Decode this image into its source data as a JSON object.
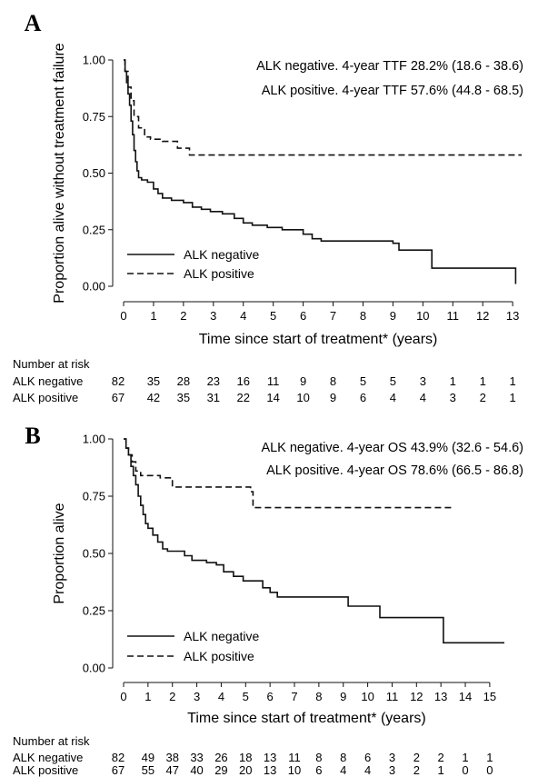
{
  "chart_data": [
    {
      "panel_letter": "A",
      "type": "line",
      "subtype": "kaplan-meier",
      "ylabel": "Proportion alive without treatment failure",
      "xlabel": "Time since start of treatment* (years)",
      "xlim": [
        0,
        13.3
      ],
      "ylim": [
        0,
        1
      ],
      "xticks": [
        "0",
        "1",
        "2",
        "3",
        "4",
        "5",
        "6",
        "7",
        "8",
        "9",
        "10",
        "11",
        "12",
        "13"
      ],
      "yticks": [
        "0.00",
        "0.25",
        "0.50",
        "0.75",
        "1.00"
      ],
      "annotations": [
        "ALK negative. 4-year TTF 28.2% (18.6 - 38.6)",
        "ALK positive. 4-year TTF 57.6% (44.8 - 68.5)"
      ],
      "legend": {
        "position": "bottom-left",
        "entries": [
          "ALK negative",
          "ALK positive"
        ]
      },
      "series": [
        {
          "name": "ALK negative",
          "style": "solid",
          "points": [
            [
              0,
              1.0
            ],
            [
              0.05,
              0.95
            ],
            [
              0.1,
              0.9
            ],
            [
              0.15,
              0.85
            ],
            [
              0.2,
              0.8
            ],
            [
              0.25,
              0.73
            ],
            [
              0.3,
              0.67
            ],
            [
              0.35,
              0.6
            ],
            [
              0.4,
              0.55
            ],
            [
              0.45,
              0.51
            ],
            [
              0.5,
              0.48
            ],
            [
              0.6,
              0.47
            ],
            [
              0.8,
              0.46
            ],
            [
              1.0,
              0.43
            ],
            [
              1.15,
              0.41
            ],
            [
              1.3,
              0.39
            ],
            [
              1.6,
              0.38
            ],
            [
              2.0,
              0.37
            ],
            [
              2.3,
              0.35
            ],
            [
              2.6,
              0.34
            ],
            [
              2.9,
              0.33
            ],
            [
              3.3,
              0.32
            ],
            [
              3.7,
              0.3
            ],
            [
              4.0,
              0.28
            ],
            [
              4.3,
              0.27
            ],
            [
              4.8,
              0.26
            ],
            [
              5.3,
              0.25
            ],
            [
              6.0,
              0.23
            ],
            [
              6.3,
              0.21
            ],
            [
              6.6,
              0.2
            ],
            [
              9.0,
              0.19
            ],
            [
              9.2,
              0.16
            ],
            [
              10.2,
              0.16
            ],
            [
              10.3,
              0.08
            ],
            [
              13.1,
              0.08
            ],
            [
              13.1,
              0.01
            ]
          ]
        },
        {
          "name": "ALK positive",
          "style": "dashed",
          "points": [
            [
              0,
              1.0
            ],
            [
              0.05,
              0.95
            ],
            [
              0.15,
              0.88
            ],
            [
              0.25,
              0.82
            ],
            [
              0.35,
              0.75
            ],
            [
              0.5,
              0.7
            ],
            [
              0.7,
              0.66
            ],
            [
              0.9,
              0.65
            ],
            [
              1.3,
              0.64
            ],
            [
              1.8,
              0.61
            ],
            [
              2.2,
              0.58
            ],
            [
              13.3,
              0.58
            ]
          ]
        }
      ],
      "risk_table": {
        "header": "Number at risk",
        "times": [
          0,
          1,
          2,
          3,
          4,
          5,
          6,
          7,
          8,
          9,
          10,
          11,
          12,
          13
        ],
        "rows": [
          {
            "label": "ALK negative",
            "values": [
              "82",
              "35",
              "28",
              "23",
              "16",
              "11",
              "9",
              "8",
              "5",
              "5",
              "3",
              "1",
              "1",
              "1"
            ]
          },
          {
            "label": "ALK positive",
            "values": [
              "67",
              "42",
              "35",
              "31",
              "22",
              "14",
              "10",
              "9",
              "6",
              "4",
              "4",
              "3",
              "2",
              "1"
            ]
          }
        ]
      }
    },
    {
      "panel_letter": "B",
      "type": "line",
      "subtype": "kaplan-meier",
      "ylabel": "Proportion alive",
      "xlabel": "Time since start of treatment* (years)",
      "xlim": [
        0,
        15.6
      ],
      "ylim": [
        0,
        1
      ],
      "xticks": [
        "0",
        "1",
        "2",
        "3",
        "4",
        "5",
        "6",
        "7",
        "8",
        "9",
        "10",
        "11",
        "12",
        "13",
        "14",
        "15"
      ],
      "yticks": [
        "0.00",
        "0.25",
        "0.50",
        "0.75",
        "1.00"
      ],
      "annotations": [
        "ALK negative. 4-year OS 43.9% (32.6 - 54.6)",
        "ALK positive. 4-year OS 78.6% (66.5 - 86.8)"
      ],
      "legend": {
        "position": "bottom-left",
        "entries": [
          "ALK negative",
          "ALK positive"
        ]
      },
      "series": [
        {
          "name": "ALK negative",
          "style": "solid",
          "points": [
            [
              0,
              1.0
            ],
            [
              0.1,
              0.96
            ],
            [
              0.2,
              0.93
            ],
            [
              0.3,
              0.88
            ],
            [
              0.4,
              0.84
            ],
            [
              0.5,
              0.8
            ],
            [
              0.6,
              0.75
            ],
            [
              0.7,
              0.71
            ],
            [
              0.8,
              0.67
            ],
            [
              0.9,
              0.63
            ],
            [
              1.0,
              0.61
            ],
            [
              1.2,
              0.58
            ],
            [
              1.4,
              0.55
            ],
            [
              1.6,
              0.52
            ],
            [
              1.8,
              0.51
            ],
            [
              2.2,
              0.51
            ],
            [
              2.5,
              0.49
            ],
            [
              2.8,
              0.47
            ],
            [
              3.4,
              0.46
            ],
            [
              3.8,
              0.45
            ],
            [
              4.1,
              0.42
            ],
            [
              4.5,
              0.4
            ],
            [
              4.9,
              0.38
            ],
            [
              5.7,
              0.35
            ],
            [
              6.0,
              0.33
            ],
            [
              6.3,
              0.31
            ],
            [
              8.0,
              0.31
            ],
            [
              9.2,
              0.27
            ],
            [
              10.5,
              0.22
            ],
            [
              13.0,
              0.22
            ],
            [
              13.1,
              0.11
            ],
            [
              15.6,
              0.11
            ]
          ]
        },
        {
          "name": "ALK positive",
          "style": "dashed",
          "points": [
            [
              0,
              1.0
            ],
            [
              0.1,
              0.96
            ],
            [
              0.2,
              0.93
            ],
            [
              0.35,
              0.9
            ],
            [
              0.5,
              0.86
            ],
            [
              0.7,
              0.84
            ],
            [
              1.5,
              0.83
            ],
            [
              2.0,
              0.79
            ],
            [
              5.2,
              0.77
            ],
            [
              5.3,
              0.7
            ],
            [
              13.5,
              0.7
            ]
          ]
        }
      ],
      "risk_table": {
        "header": "Number at risk",
        "times": [
          0,
          1,
          2,
          3,
          4,
          5,
          6,
          7,
          8,
          9,
          10,
          11,
          12,
          13,
          14,
          15
        ],
        "rows": [
          {
            "label": "ALK negative",
            "values": [
              "82",
              "49",
              "38",
              "33",
              "26",
              "18",
              "13",
              "11",
              "8",
              "8",
              "6",
              "3",
              "2",
              "2",
              "1",
              "1"
            ]
          },
          {
            "label": "ALK positive",
            "values": [
              "67",
              "55",
              "47",
              "40",
              "29",
              "20",
              "13",
              "10",
              "6",
              "4",
              "4",
              "3",
              "2",
              "1",
              "0",
              "0"
            ]
          }
        ]
      }
    }
  ]
}
